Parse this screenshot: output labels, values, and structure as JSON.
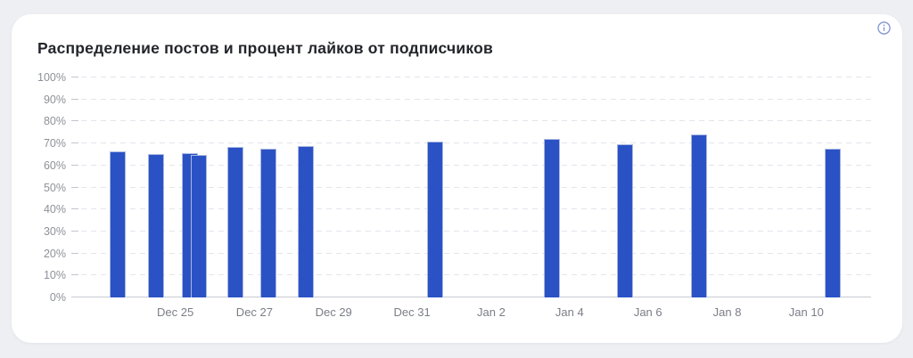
{
  "card": {
    "title": "Распределение постов и процент лайков от подписчиков",
    "info_icon": "info-circle"
  },
  "colors": {
    "page_bg": "#edeff3",
    "card_bg": "#ffffff",
    "title": "#23252b",
    "bar": "#2a52c5",
    "grid": "#e3e5ec",
    "axis_line": "#c8cbd1",
    "y_label": "#8e9199",
    "x_label": "#7b7e87",
    "info_icon": "#8093d1"
  },
  "chart_data": {
    "type": "bar",
    "title": "Распределение постов и процент лайков от подписчиков",
    "xlabel": "",
    "ylabel": "",
    "unit": "%",
    "ylim": [
      0,
      100
    ],
    "grid": "horizontal-dashed",
    "legend_position": "none",
    "y_ticks": [
      {
        "label": "0%",
        "value": 0
      },
      {
        "label": "10%",
        "value": 10
      },
      {
        "label": "20%",
        "value": 20
      },
      {
        "label": "30%",
        "value": 30
      },
      {
        "label": "40%",
        "value": 40
      },
      {
        "label": "50%",
        "value": 50
      },
      {
        "label": "60%",
        "value": 60
      },
      {
        "label": "70%",
        "value": 70
      },
      {
        "label": "80%",
        "value": 80
      },
      {
        "label": "90%",
        "value": 90
      },
      {
        "label": "100%",
        "value": 100
      }
    ],
    "x_ticks": [
      {
        "label": "Dec 25",
        "pos": 13.0
      },
      {
        "label": "Dec 27",
        "pos": 22.9
      },
      {
        "label": "Dec 29",
        "pos": 32.8
      },
      {
        "label": "Dec 31",
        "pos": 42.6
      },
      {
        "label": "Jan 2",
        "pos": 52.5
      },
      {
        "label": "Jan 4",
        "pos": 62.3
      },
      {
        "label": "Jan 6",
        "pos": 72.1
      },
      {
        "label": "Jan 8",
        "pos": 82.0
      },
      {
        "label": "Jan 10",
        "pos": 91.9
      }
    ],
    "bars": [
      {
        "date": "Dec 23",
        "value": 66.5,
        "pos": 5.8
      },
      {
        "date": "Dec 24",
        "value": 65.0,
        "pos": 10.6
      },
      {
        "date": "Dec 25",
        "value": 65.5,
        "pos": 14.8
      },
      {
        "date": "Dec 25",
        "value": 64.7,
        "pos": 15.9
      },
      {
        "date": "Dec 26",
        "value": 68.3,
        "pos": 20.5
      },
      {
        "date": "Dec 27",
        "value": 67.5,
        "pos": 24.6
      },
      {
        "date": "Dec 28",
        "value": 68.7,
        "pos": 29.3
      },
      {
        "date": "Dec 31",
        "value": 70.8,
        "pos": 45.5
      },
      {
        "date": "Jan 3",
        "value": 72.2,
        "pos": 60.1
      },
      {
        "date": "Jan 5",
        "value": 69.5,
        "pos": 69.2
      },
      {
        "date": "Jan 7",
        "value": 73.9,
        "pos": 78.5
      },
      {
        "date": "Jan 10",
        "value": 67.8,
        "pos": 95.2
      }
    ]
  }
}
